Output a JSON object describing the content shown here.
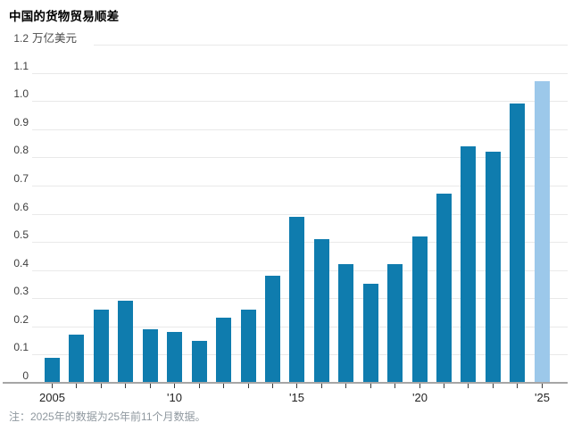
{
  "header": {
    "title": "中国的货物贸易顺差"
  },
  "chart_data": {
    "type": "bar",
    "title": "中国的货物贸易顺差",
    "unit_label": {
      "value": "1.2",
      "unit": "万亿美元"
    },
    "ylabel": "万亿美元",
    "ymax": 1.2,
    "grid": true,
    "categories": [
      2005,
      2006,
      2007,
      2008,
      2009,
      2010,
      2011,
      2012,
      2013,
      2014,
      2015,
      2016,
      2017,
      2018,
      2019,
      2020,
      2021,
      2022,
      2023,
      2024,
      2025
    ],
    "values": [
      0.09,
      0.17,
      0.26,
      0.29,
      0.19,
      0.18,
      0.15,
      0.23,
      0.26,
      0.38,
      0.59,
      0.51,
      0.42,
      0.35,
      0.42,
      0.52,
      0.67,
      0.84,
      0.82,
      0.99,
      1.07
    ],
    "highlight_last": true,
    "yticks": [
      "0",
      "0.1",
      "0.2",
      "0.3",
      "0.4",
      "0.5",
      "0.6",
      "0.7",
      "0.8",
      "0.9",
      "1.0",
      "1.1"
    ],
    "xtick_labels": {
      "2005": "2005",
      "2010": "'10",
      "2015": "'15",
      "2020": "'20",
      "2025": "'25"
    },
    "colors": {
      "bar": "#0f7cae",
      "highlight": "#9cc8ea",
      "gridline": "#e9e9e9",
      "axis": "#a6a6a6"
    }
  },
  "footnote": "注：2025年的数据为25年前11个月数据。"
}
